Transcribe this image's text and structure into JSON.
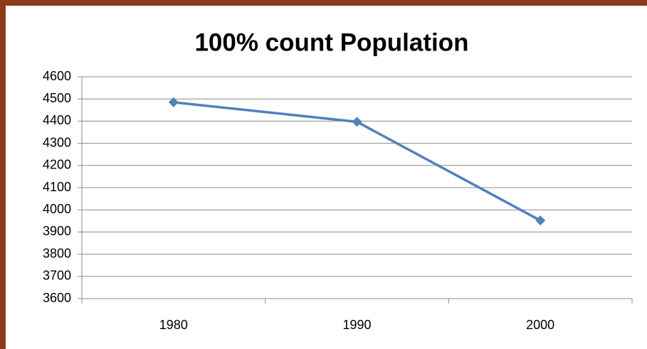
{
  "chart_data": {
    "type": "line",
    "title": "100% count Population",
    "categories": [
      "1980",
      "1990",
      "2000"
    ],
    "values": [
      4485,
      4397,
      3952
    ],
    "color": "#4f81bd",
    "ylim": [
      3600,
      4600
    ],
    "yticks": [
      3600,
      3700,
      3800,
      3900,
      4000,
      4100,
      4200,
      4300,
      4400,
      4500,
      4600
    ],
    "grid": true,
    "marker": "diamond"
  }
}
